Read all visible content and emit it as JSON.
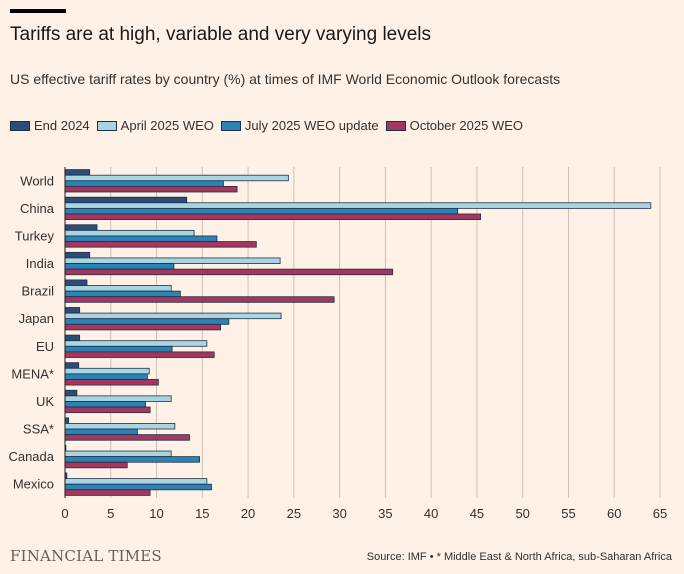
{
  "header": {
    "title": "Tariffs are at high, variable and very varying levels",
    "subtitle": "US effective tariff rates by country (%) at times of IMF World Economic Outlook forecasts"
  },
  "footer": {
    "logo": "FINANCIAL TIMES",
    "source": "Source: IMF • * Middle East & North Africa, sub-Saharan Africa"
  },
  "colors": {
    "background": "#fff1e5",
    "grid": "#ccc1b7",
    "axis": "#66605c",
    "bar_outline": "#1f2f45"
  },
  "chart_data": {
    "type": "bar",
    "orientation": "horizontal",
    "categories": [
      "World",
      "China",
      "Turkey",
      "India",
      "Brazil",
      "Japan",
      "EU",
      "MENA*",
      "UK",
      "SSA*",
      "Canada",
      "Mexico"
    ],
    "series": [
      {
        "name": "End 2024",
        "color": "#2b4d78",
        "values": [
          2.7,
          13.3,
          3.5,
          2.7,
          2.4,
          1.6,
          1.6,
          1.5,
          1.3,
          0.4,
          0.1,
          0.2
        ]
      },
      {
        "name": "April 2025 WEO",
        "color": "#a9d5e2",
        "values": [
          24.4,
          64.0,
          14.1,
          23.5,
          11.6,
          23.6,
          15.5,
          9.2,
          11.6,
          12.0,
          11.6,
          15.5
        ]
      },
      {
        "name": "July 2025 WEO update",
        "color": "#2b83b5",
        "values": [
          17.3,
          42.9,
          16.6,
          11.9,
          12.6,
          17.9,
          11.7,
          9.0,
          8.8,
          7.9,
          14.7,
          16.0
        ]
      },
      {
        "name": "October 2025 WEO",
        "color": "#a5365d",
        "values": [
          18.8,
          45.4,
          20.9,
          35.8,
          29.4,
          17.0,
          16.3,
          10.2,
          9.3,
          13.6,
          6.8,
          9.3
        ]
      }
    ],
    "x_ticks": [
      0,
      5,
      10,
      15,
      20,
      25,
      30,
      35,
      40,
      45,
      50,
      55,
      60,
      65
    ],
    "xlim": [
      0,
      65
    ],
    "grid": true,
    "legend_position": "top"
  }
}
